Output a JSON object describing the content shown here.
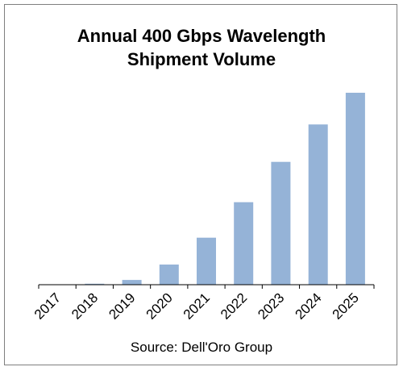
{
  "chart_data": {
    "type": "bar",
    "title_lines": [
      "Annual 400 Gbps Wavelength",
      "Shipment Volume"
    ],
    "source": "Source: Dell'Oro Group",
    "categories": [
      "2017",
      "2018",
      "2019",
      "2020",
      "2021",
      "2022",
      "2023",
      "2024",
      "2025"
    ],
    "values": [
      0,
      0.5,
      2.5,
      10.5,
      24.5,
      43,
      64,
      83.5,
      100
    ],
    "value_unit": "relative (% of 2025 volume); y-axis not printed",
    "ylim": [
      0,
      100
    ],
    "grid": false,
    "legend": "none",
    "colors": {
      "bar": "#95b3d7",
      "axis": "#000000",
      "border": "#7f7f7f"
    }
  }
}
